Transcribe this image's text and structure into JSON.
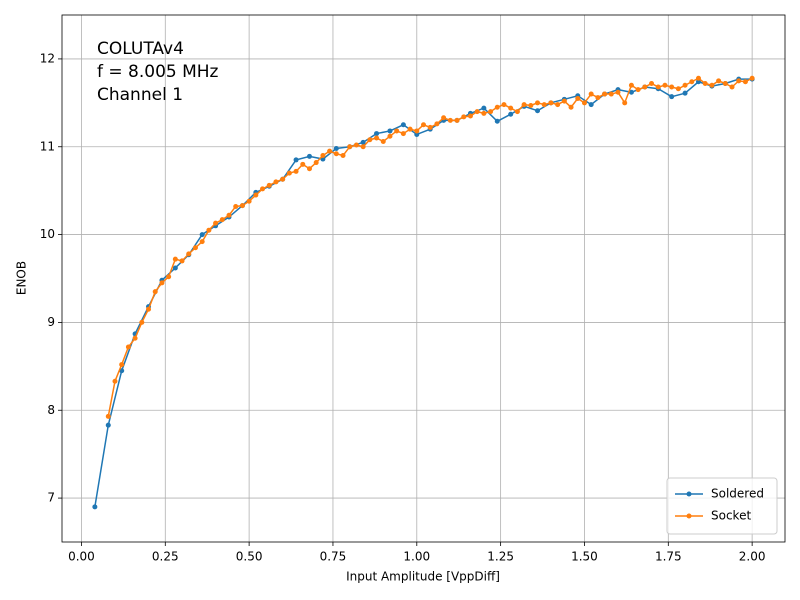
{
  "chart_data": {
    "type": "line",
    "annotation": [
      "COLUTAv4",
      "f = 8.005 MHz",
      "Channel 1"
    ],
    "xlabel": "Input Amplitude [VppDiff]",
    "ylabel": "ENOB",
    "xlim": [
      -0.058,
      2.098
    ],
    "ylim": [
      6.5,
      12.5
    ],
    "xticks": [
      {
        "value": 0,
        "label": "0.00"
      },
      {
        "value": 0.25,
        "label": "0.25"
      },
      {
        "value": 0.5,
        "label": "0.50"
      },
      {
        "value": 0.75,
        "label": "0.75"
      },
      {
        "value": 1,
        "label": "1.00"
      },
      {
        "value": 1.25,
        "label": "1.25"
      },
      {
        "value": 1.5,
        "label": "1.50"
      },
      {
        "value": 1.75,
        "label": "1.75"
      },
      {
        "value": 2,
        "label": "2.00"
      }
    ],
    "yticks": [
      7,
      8,
      9,
      10,
      11,
      12
    ],
    "grid": true,
    "legend": "lower right",
    "series": [
      {
        "name": "Soldered",
        "color": "#1f77b4",
        "x": [
          0.04,
          0.08,
          0.12,
          0.16,
          0.2,
          0.24,
          0.28,
          0.32,
          0.36,
          0.4,
          0.44,
          0.48,
          0.52,
          0.56,
          0.6,
          0.64,
          0.68,
          0.72,
          0.76,
          0.8,
          0.84,
          0.88,
          0.92,
          0.96,
          1.0,
          1.04,
          1.08,
          1.12,
          1.16,
          1.2,
          1.24,
          1.28,
          1.32,
          1.36,
          1.4,
          1.44,
          1.48,
          1.52,
          1.56,
          1.6,
          1.64,
          1.68,
          1.72,
          1.76,
          1.8,
          1.84,
          1.88,
          1.92,
          1.96,
          2.0
        ],
        "values": [
          6.9,
          7.83,
          8.45,
          8.87,
          9.18,
          9.48,
          9.62,
          9.77,
          10.0,
          10.1,
          10.2,
          10.33,
          10.48,
          10.55,
          10.63,
          10.85,
          10.89,
          10.86,
          10.98,
          11.0,
          11.05,
          11.15,
          11.18,
          11.25,
          11.14,
          11.2,
          11.3,
          11.3,
          11.38,
          11.44,
          11.29,
          11.37,
          11.46,
          11.41,
          11.5,
          11.54,
          11.58,
          11.48,
          11.6,
          11.65,
          11.62,
          11.68,
          11.66,
          11.57,
          11.61,
          11.74,
          11.69,
          11.72,
          11.77,
          11.77
        ]
      },
      {
        "name": "Socket",
        "color": "#ff7f0e",
        "x": [
          0.08,
          0.1,
          0.12,
          0.14,
          0.16,
          0.18,
          0.2,
          0.22,
          0.24,
          0.26,
          0.28,
          0.3,
          0.32,
          0.34,
          0.36,
          0.38,
          0.4,
          0.42,
          0.44,
          0.46,
          0.48,
          0.5,
          0.52,
          0.54,
          0.56,
          0.58,
          0.6,
          0.62,
          0.64,
          0.66,
          0.68,
          0.7,
          0.72,
          0.74,
          0.76,
          0.78,
          0.8,
          0.82,
          0.84,
          0.86,
          0.88,
          0.9,
          0.92,
          0.94,
          0.96,
          0.98,
          1.0,
          1.02,
          1.04,
          1.06,
          1.08,
          1.1,
          1.12,
          1.14,
          1.16,
          1.18,
          1.2,
          1.22,
          1.24,
          1.26,
          1.28,
          1.3,
          1.32,
          1.34,
          1.36,
          1.38,
          1.4,
          1.42,
          1.44,
          1.46,
          1.48,
          1.5,
          1.52,
          1.54,
          1.56,
          1.58,
          1.6,
          1.62,
          1.64,
          1.66,
          1.68,
          1.7,
          1.72,
          1.74,
          1.76,
          1.78,
          1.8,
          1.82,
          1.84,
          1.86,
          1.88,
          1.9,
          1.92,
          1.94,
          1.96,
          1.98,
          2.0
        ],
        "values": [
          7.93,
          8.33,
          8.52,
          8.72,
          8.82,
          9.0,
          9.15,
          9.35,
          9.45,
          9.52,
          9.72,
          9.7,
          9.78,
          9.85,
          9.92,
          10.05,
          10.13,
          10.17,
          10.22,
          10.32,
          10.33,
          10.38,
          10.45,
          10.52,
          10.56,
          10.6,
          10.63,
          10.7,
          10.72,
          10.8,
          10.75,
          10.82,
          10.9,
          10.95,
          10.92,
          10.9,
          11.0,
          11.02,
          11.0,
          11.08,
          11.1,
          11.06,
          11.12,
          11.18,
          11.15,
          11.2,
          11.18,
          11.25,
          11.22,
          11.26,
          11.33,
          11.3,
          11.3,
          11.34,
          11.35,
          11.4,
          11.38,
          11.4,
          11.45,
          11.48,
          11.44,
          11.4,
          11.48,
          11.47,
          11.5,
          11.48,
          11.5,
          11.48,
          11.52,
          11.45,
          11.55,
          11.5,
          11.6,
          11.56,
          11.6,
          11.6,
          11.62,
          11.5,
          11.7,
          11.65,
          11.68,
          11.72,
          11.68,
          11.7,
          11.68,
          11.66,
          11.7,
          11.74,
          11.78,
          11.72,
          11.7,
          11.75,
          11.72,
          11.68,
          11.75,
          11.74,
          11.78
        ]
      }
    ]
  }
}
